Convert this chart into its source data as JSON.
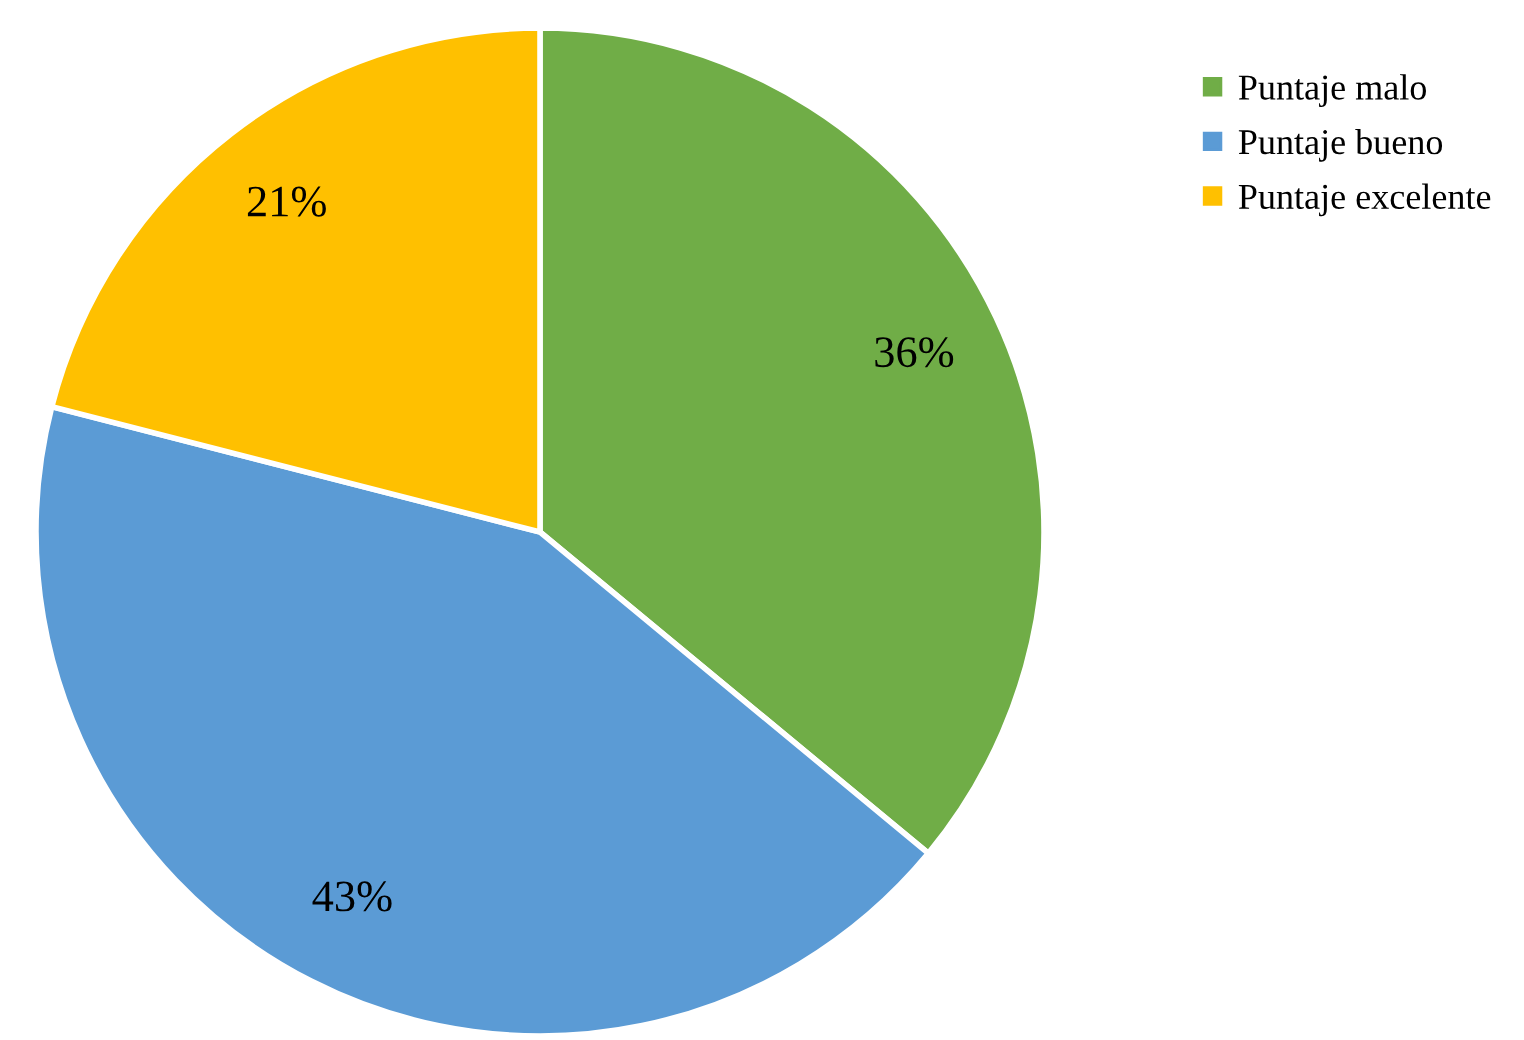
{
  "chart_data": {
    "type": "pie",
    "categories": [
      "Puntaje malo",
      "Puntaje bueno",
      "Puntaje excelente"
    ],
    "values": [
      36,
      43,
      21
    ],
    "colors": [
      "#70ad47",
      "#5b9bd5",
      "#ffc000"
    ],
    "value_labels": [
      "36%",
      "43%",
      "21%"
    ],
    "legend": "top right"
  }
}
